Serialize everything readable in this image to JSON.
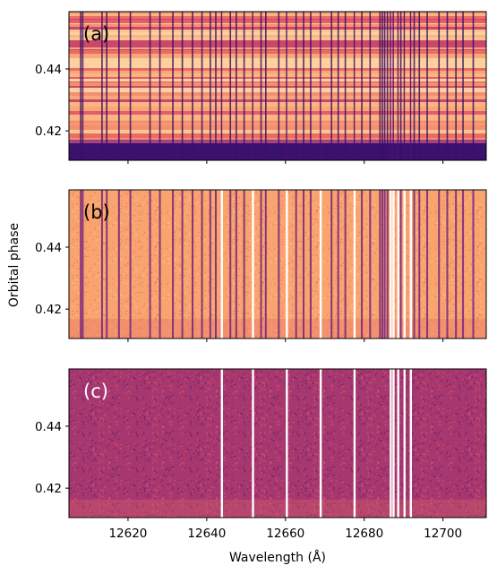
{
  "chart_data": {
    "type": "heatmap",
    "colormap": "magma",
    "ylabel": "Orbital phase",
    "xlabel": "Wavelength (Å)",
    "xlim": [
      12605,
      12711
    ],
    "ylim": [
      0.4105,
      0.4585
    ],
    "x_ticks": [
      12620,
      12640,
      12660,
      12680,
      12700
    ],
    "x_tick_labels": [
      "12620",
      "12640",
      "12660",
      "12680",
      "12700"
    ],
    "y_ticks": [
      0.42,
      0.44
    ],
    "y_tick_labels": [
      "0.42",
      "0.44"
    ],
    "panels": [
      {
        "label": "(a)",
        "label_color": "#000000",
        "description_values": {
          "phase_dark_below": 0.416
        }
      },
      {
        "label": "(b)",
        "label_color": "#000000"
      },
      {
        "label": "(c)",
        "label_color": "#ffffff"
      }
    ],
    "masked_wavelengths": [
      12643.8,
      12651.7,
      12660.3,
      12668.9,
      12677.5,
      12686.7,
      12687.4,
      12688.6,
      12690.2,
      12691.8
    ],
    "absorption_lines": [
      12608.0,
      12608.5,
      12613.4,
      12614.6,
      12617.7,
      12620.6,
      12625.6,
      12628.1,
      12631.4,
      12633.8,
      12636.4,
      12638.8,
      12640.9,
      12642.3,
      12646.0,
      12647.5,
      12649.5,
      12653.8,
      12655.0,
      12658.3,
      12662.7,
      12664.6,
      12666.4,
      12671.7,
      12673.4,
      12675.2,
      12679.4,
      12681.5,
      12684.0,
      12684.6,
      12685.2,
      12685.9,
      12689.3,
      12692.7,
      12694.0,
      12696.0,
      12699.0,
      12701.1,
      12703.3,
      12705.1,
      12707.7
    ]
  }
}
